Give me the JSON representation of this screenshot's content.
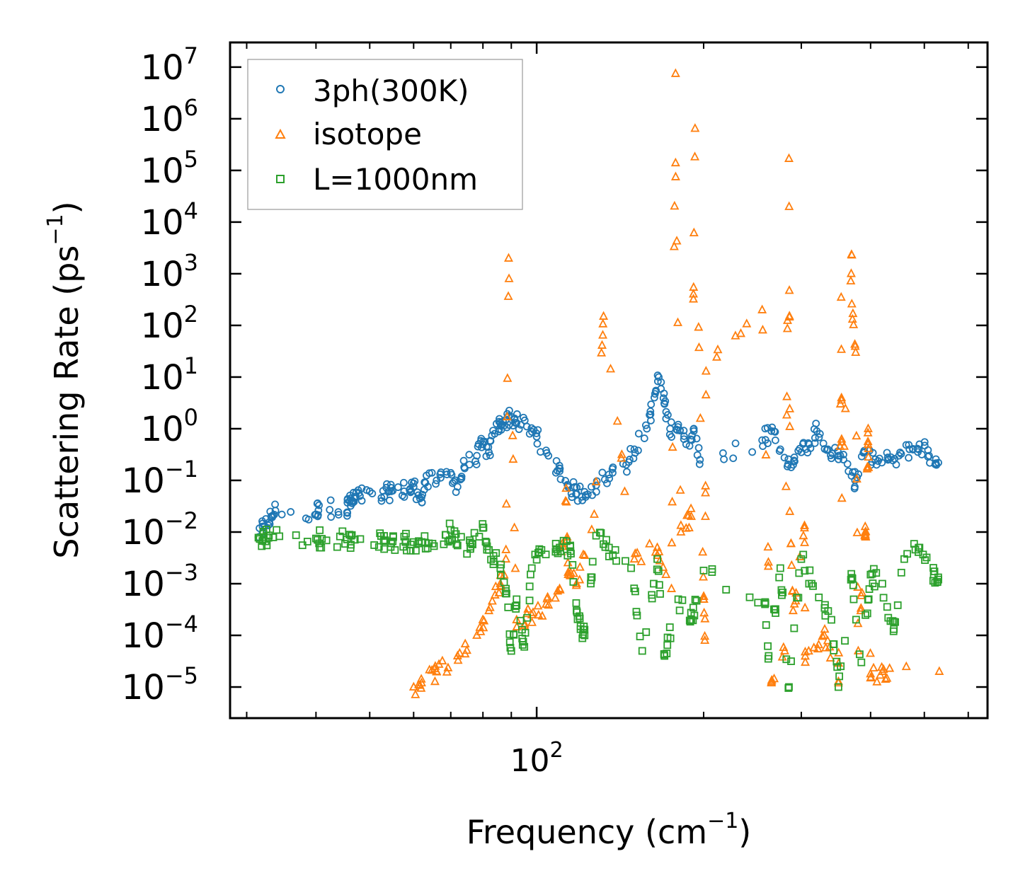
{
  "chart_data": {
    "type": "scatter",
    "xscale": "log",
    "yscale": "log",
    "xlabel": "Frequency (cm",
    "xlabel_sup": "−1",
    "xlabel_end": ")",
    "ylabel": "Scattering Rate (ps",
    "ylabel_sup": "−1",
    "ylabel_end": ")",
    "xlim": [
      28,
      650
    ],
    "ylim": [
      2.5e-06,
      30000000
    ],
    "xticks": [
      {
        "value": 100,
        "base": "10",
        "exp": "2"
      }
    ],
    "yticks": [
      {
        "value": 1e-05,
        "base": "10",
        "exp": "−5"
      },
      {
        "value": 0.0001,
        "base": "10",
        "exp": "−4"
      },
      {
        "value": 0.001,
        "base": "10",
        "exp": "−3"
      },
      {
        "value": 0.01,
        "base": "10",
        "exp": "−2"
      },
      {
        "value": 0.1,
        "base": "10",
        "exp": "−1"
      },
      {
        "value": 1,
        "base": "10",
        "exp": "0"
      },
      {
        "value": 10,
        "base": "10",
        "exp": "1"
      },
      {
        "value": 100,
        "base": "10",
        "exp": "2"
      },
      {
        "value": 1000,
        "base": "10",
        "exp": "3"
      },
      {
        "value": 10000,
        "base": "10",
        "exp": "4"
      },
      {
        "value": 100000,
        "base": "10",
        "exp": "5"
      },
      {
        "value": 1000000,
        "base": "10",
        "exp": "6"
      },
      {
        "value": 10000000,
        "base": "10",
        "exp": "7"
      }
    ],
    "legend_position": "top-left",
    "series": [
      {
        "name": "3ph(300K)",
        "marker": "circle",
        "color": "#1f77b4",
        "anchors": [
          [
            31.5,
            0.008
          ],
          [
            32.3,
            0.013
          ],
          [
            33.2,
            0.02
          ],
          [
            33.8,
            0.026
          ],
          [
            40,
            0.022
          ],
          [
            40.5,
            0.033
          ],
          [
            45.5,
            0.024
          ],
          [
            45.6,
            0.042
          ],
          [
            46.5,
            0.036
          ],
          [
            47,
            0.045
          ],
          [
            48,
            0.05
          ],
          [
            52.5,
            0.046
          ],
          [
            54,
            0.06
          ],
          [
            55,
            0.063
          ],
          [
            59,
            0.065
          ],
          [
            60,
            0.075
          ],
          [
            62,
            0.047
          ],
          [
            63,
            0.09
          ],
          [
            66,
            0.1
          ],
          [
            70,
            0.14
          ],
          [
            72,
            0.075
          ],
          [
            74,
            0.18
          ],
          [
            78,
            0.3
          ],
          [
            80,
            0.5
          ],
          [
            82,
            0.35
          ],
          [
            84,
            0.8
          ],
          [
            86,
            1.3
          ],
          [
            88,
            1.5
          ],
          [
            90,
            1.7
          ],
          [
            92,
            1.3
          ],
          [
            96,
            1.1
          ],
          [
            100,
            0.7
          ],
          [
            105,
            0.3
          ],
          [
            110,
            0.15
          ],
          [
            114,
            0.08
          ],
          [
            118,
            0.055
          ],
          [
            122,
            0.06
          ],
          [
            128,
            0.08
          ],
          [
            135,
            0.13
          ],
          [
            145,
            0.2
          ],
          [
            150,
            0.4
          ],
          [
            158,
            1
          ],
          [
            163,
            4
          ],
          [
            166,
            10
          ],
          [
            170,
            3
          ],
          [
            174,
            1
          ],
          [
            180,
            1.2
          ],
          [
            186,
            0.5
          ],
          [
            192,
            1
          ],
          [
            197,
            0.25
          ],
          [
            255,
            0.6
          ],
          [
            265,
            0.9
          ],
          [
            275,
            0.4
          ],
          [
            290,
            0.2
          ],
          [
            300,
            0.35
          ],
          [
            310,
            0.5
          ],
          [
            320,
            0.9
          ],
          [
            335,
            0.4
          ],
          [
            350,
            0.3
          ],
          [
            365,
            0.15
          ],
          [
            375,
            0.1
          ],
          [
            390,
            0.35
          ],
          [
            410,
            0.2
          ],
          [
            430,
            0.25
          ],
          [
            450,
            0.3
          ],
          [
            470,
            0.4
          ],
          [
            490,
            0.5
          ],
          [
            510,
            0.3
          ],
          [
            530,
            0.22
          ]
        ]
      },
      {
        "name": "isotope",
        "marker": "triangle",
        "color": "#ff7f0e",
        "anchors": [
          [
            89,
            2000
          ],
          [
            132,
            150
          ],
          [
            178,
            7500000
          ],
          [
            178,
            140000
          ],
          [
            193,
            650000
          ],
          [
            202,
            13
          ],
          [
            201,
            8e-05
          ],
          [
            255,
            200
          ],
          [
            285,
            170000
          ],
          [
            286,
            1.1
          ],
          [
            286,
            0.025
          ],
          [
            304,
            0.012
          ],
          [
            354,
            350
          ],
          [
            355,
            0.045
          ],
          [
            370,
            2300
          ],
          [
            370,
            260
          ],
          [
            376,
            30
          ],
          [
            396,
            1
          ],
          [
            392,
            0.008
          ],
          [
            391,
            0.0098
          ],
          [
            532,
            2e-05
          ],
          [
            127,
            0.022
          ],
          [
            113,
            0.07
          ],
          [
            60,
            1e-05
          ],
          [
            62,
            1.2e-05
          ],
          [
            66,
            2e-05
          ],
          [
            72,
            4e-05
          ],
          [
            78,
            0.0001
          ],
          [
            82,
            0.0003
          ],
          [
            86,
            0.001
          ],
          [
            88,
            0.003
          ],
          [
            92,
            0.0002
          ],
          [
            98,
            0.00025
          ],
          [
            104,
            0.0004
          ],
          [
            110,
            0.0008
          ],
          [
            114,
            0.0015
          ],
          [
            118,
            0.001
          ],
          [
            150,
            0.003
          ],
          [
            165,
            0.005
          ],
          [
            175,
            0.0008
          ],
          [
            182,
            0.01
          ],
          [
            190,
            0.02
          ],
          [
            200,
            0.0005
          ],
          [
            265,
            1.2e-05
          ],
          [
            280,
            5e-05
          ],
          [
            290,
            0.0003
          ],
          [
            305,
            3e-05
          ],
          [
            330,
            0.0001
          ],
          [
            350,
            1.2e-05
          ],
          [
            380,
            5e-05
          ],
          [
            400,
            1.5e-05
          ],
          [
            420,
            2e-05
          ]
        ]
      },
      {
        "name": "L=1000nm",
        "marker": "square",
        "color": "#2ca02c",
        "anchors": [
          [
            31.5,
            0.0078
          ],
          [
            32.2,
            0.008
          ],
          [
            33.5,
            0.0079
          ],
          [
            40,
            0.0075
          ],
          [
            41,
            0.0074
          ],
          [
            45.5,
            0.0072
          ],
          [
            47,
            0.0071
          ],
          [
            53,
            0.0067
          ],
          [
            55,
            0.0066
          ],
          [
            58,
            0.0065
          ],
          [
            60,
            0.0064
          ],
          [
            63,
            0.0062
          ],
          [
            68,
            0.0058
          ],
          [
            70,
            0.011
          ],
          [
            72,
            0.0055
          ],
          [
            76,
            0.0052
          ],
          [
            80,
            0.012
          ],
          [
            82,
            0.0045
          ],
          [
            86,
            0.002
          ],
          [
            88,
            0.0008
          ],
          [
            90,
            5e-05
          ],
          [
            95,
            6e-05
          ],
          [
            92,
            0.0005
          ],
          [
            98,
            0.002
          ],
          [
            102,
            0.0045
          ],
          [
            110,
            0.005
          ],
          [
            115,
            0.0052
          ],
          [
            118,
            0.0003
          ],
          [
            120,
            0.00015
          ],
          [
            122,
            0.0001
          ],
          [
            128,
            0.0085
          ],
          [
            135,
            0.005
          ],
          [
            148,
            0.002
          ],
          [
            155,
            5e-05
          ],
          [
            170,
            4e-05
          ],
          [
            165,
            0.003
          ],
          [
            180,
            0.0005
          ],
          [
            190,
            0.0002
          ],
          [
            200,
            0.0018
          ],
          [
            258,
            0.0004
          ],
          [
            262,
            4e-05
          ],
          [
            275,
            0.002
          ],
          [
            285,
            1e-05
          ],
          [
            300,
            0.003
          ],
          [
            315,
            0.0009
          ],
          [
            340,
            0.0002
          ],
          [
            350,
            1e-05
          ],
          [
            370,
            0.0013
          ],
          [
            385,
            3e-05
          ],
          [
            400,
            0.0015
          ],
          [
            420,
            0.001
          ],
          [
            440,
            0.00012
          ],
          [
            460,
            0.003
          ],
          [
            490,
            0.005
          ],
          [
            520,
            0.0015
          ],
          [
            530,
            0.0012
          ]
        ]
      }
    ]
  }
}
